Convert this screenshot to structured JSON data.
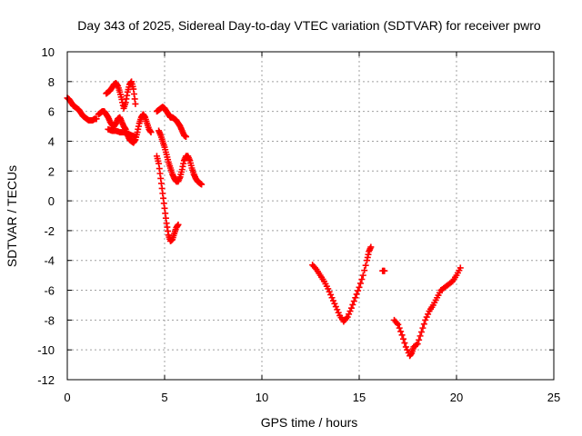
{
  "chart_data": {
    "type": "scatter",
    "title": "Day 343 of 2025, Sidereal Day-to-day VTEC variation (SDTVAR) for receiver pwro",
    "xlabel": "GPS time / hours",
    "ylabel": "SDTVAR / TECUs",
    "xlim": [
      0,
      25
    ],
    "ylim": [
      -12,
      10
    ],
    "x_ticks": [
      0,
      5,
      10,
      15,
      20,
      25
    ],
    "y_ticks": [
      -12,
      -10,
      -8,
      -6,
      -4,
      -2,
      0,
      2,
      4,
      6,
      8,
      10
    ],
    "grid": true,
    "marker_color": "#ff0000",
    "marker": "plus",
    "series_segments": [
      [
        [
          0.0,
          6.9
        ],
        [
          0.1,
          6.8
        ],
        [
          0.2,
          6.6
        ],
        [
          0.3,
          6.4
        ],
        [
          0.4,
          6.3
        ],
        [
          0.5,
          6.2
        ],
        [
          0.6,
          6.1
        ],
        [
          0.7,
          5.9
        ],
        [
          0.8,
          5.7
        ],
        [
          0.9,
          5.6
        ],
        [
          1.0,
          5.5
        ],
        [
          1.1,
          5.4
        ],
        [
          1.2,
          5.4
        ],
        [
          1.3,
          5.4
        ],
        [
          1.4,
          5.5
        ],
        [
          1.5,
          5.5
        ]
      ],
      [
        [
          1.6,
          5.8
        ],
        [
          1.7,
          5.9
        ],
        [
          1.8,
          6.0
        ],
        [
          1.9,
          6.0
        ],
        [
          2.0,
          5.8
        ],
        [
          2.1,
          5.6
        ],
        [
          2.2,
          5.3
        ],
        [
          2.3,
          5.1
        ],
        [
          2.4,
          5.0
        ],
        [
          2.5,
          5.2
        ],
        [
          2.6,
          5.5
        ],
        [
          2.7,
          5.6
        ],
        [
          2.8,
          5.3
        ],
        [
          2.9,
          5.0
        ],
        [
          3.0,
          4.8
        ],
        [
          3.1,
          4.4
        ],
        [
          3.2,
          4.1
        ],
        [
          3.3,
          4.0
        ],
        [
          3.4,
          3.9
        ],
        [
          3.5,
          4.1
        ],
        [
          3.6,
          4.6
        ],
        [
          3.7,
          5.2
        ],
        [
          3.8,
          5.6
        ],
        [
          3.9,
          5.8
        ],
        [
          4.0,
          5.6
        ],
        [
          4.1,
          5.2
        ],
        [
          4.2,
          4.8
        ],
        [
          4.3,
          4.6
        ]
      ],
      [
        [
          2.0,
          7.2
        ],
        [
          2.1,
          7.3
        ],
        [
          2.2,
          7.4
        ],
        [
          2.3,
          7.6
        ],
        [
          2.4,
          7.8
        ],
        [
          2.5,
          7.9
        ],
        [
          2.6,
          7.7
        ],
        [
          2.7,
          7.3
        ],
        [
          2.8,
          6.8
        ],
        [
          2.9,
          6.2
        ],
        [
          3.0,
          6.6
        ],
        [
          3.1,
          7.3
        ],
        [
          3.2,
          7.8
        ],
        [
          3.3,
          8.0
        ],
        [
          3.4,
          7.5
        ],
        [
          3.5,
          6.5
        ]
      ],
      [
        [
          2.1,
          4.8
        ],
        [
          2.3,
          4.7
        ],
        [
          2.5,
          4.7
        ],
        [
          2.7,
          4.6
        ],
        [
          2.9,
          4.6
        ],
        [
          3.1,
          4.5
        ],
        [
          3.3,
          4.4
        ],
        [
          3.5,
          4.3
        ]
      ],
      [
        [
          4.6,
          6.0
        ],
        [
          4.7,
          6.1
        ],
        [
          4.8,
          6.2
        ],
        [
          4.9,
          6.3
        ],
        [
          5.0,
          6.2
        ],
        [
          5.1,
          6.0
        ],
        [
          5.2,
          5.8
        ],
        [
          5.3,
          5.6
        ],
        [
          5.4,
          5.6
        ],
        [
          5.5,
          5.5
        ],
        [
          5.6,
          5.4
        ],
        [
          5.7,
          5.2
        ],
        [
          5.8,
          5.0
        ],
        [
          5.9,
          4.7
        ],
        [
          6.0,
          4.4
        ],
        [
          6.1,
          4.3
        ]
      ],
      [
        [
          4.7,
          4.7
        ],
        [
          4.8,
          4.4
        ],
        [
          4.9,
          4.0
        ],
        [
          5.0,
          3.6
        ],
        [
          5.1,
          3.1
        ],
        [
          5.2,
          2.6
        ],
        [
          5.3,
          2.2
        ],
        [
          5.4,
          1.8
        ],
        [
          5.5,
          1.5
        ],
        [
          5.6,
          1.3
        ],
        [
          5.7,
          1.3
        ],
        [
          5.8,
          1.6
        ],
        [
          5.9,
          2.1
        ],
        [
          6.0,
          2.7
        ],
        [
          6.1,
          3.0
        ],
        [
          6.2,
          3.0
        ],
        [
          6.3,
          2.7
        ],
        [
          6.4,
          2.2
        ],
        [
          6.5,
          1.8
        ],
        [
          6.6,
          1.5
        ],
        [
          6.7,
          1.3
        ],
        [
          6.8,
          1.2
        ],
        [
          6.9,
          1.1
        ]
      ],
      [
        [
          4.6,
          3.0
        ],
        [
          4.7,
          2.5
        ],
        [
          4.8,
          1.5
        ],
        [
          4.9,
          0.5
        ],
        [
          5.0,
          -0.5
        ],
        [
          5.1,
          -1.5
        ],
        [
          5.2,
          -2.3
        ],
        [
          5.3,
          -2.7
        ],
        [
          5.4,
          -2.6
        ],
        [
          5.5,
          -2.2
        ],
        [
          5.6,
          -1.8
        ],
        [
          5.7,
          -1.6
        ]
      ],
      [
        [
          12.6,
          -4.3
        ],
        [
          12.8,
          -4.6
        ],
        [
          13.0,
          -5.0
        ],
        [
          13.2,
          -5.4
        ],
        [
          13.4,
          -5.9
        ],
        [
          13.6,
          -6.5
        ],
        [
          13.8,
          -7.1
        ],
        [
          14.0,
          -7.7
        ],
        [
          14.2,
          -8.1
        ],
        [
          14.4,
          -7.8
        ],
        [
          14.6,
          -7.2
        ],
        [
          14.8,
          -6.5
        ],
        [
          15.0,
          -5.8
        ],
        [
          15.2,
          -5.0
        ],
        [
          15.4,
          -4.0
        ],
        [
          15.5,
          -3.4
        ],
        [
          15.6,
          -3.1
        ]
      ],
      [
        [
          16.2,
          -4.7
        ],
        [
          16.3,
          -4.7
        ]
      ],
      [
        [
          16.8,
          -8.0
        ],
        [
          17.0,
          -8.3
        ],
        [
          17.2,
          -9.0
        ],
        [
          17.4,
          -9.8
        ],
        [
          17.6,
          -10.4
        ],
        [
          17.7,
          -10.2
        ],
        [
          17.8,
          -9.8
        ],
        [
          18.0,
          -9.6
        ],
        [
          18.2,
          -8.8
        ],
        [
          18.4,
          -8.0
        ],
        [
          18.6,
          -7.4
        ],
        [
          18.8,
          -7.0
        ],
        [
          19.0,
          -6.5
        ],
        [
          19.2,
          -6.0
        ],
        [
          19.4,
          -5.8
        ],
        [
          19.6,
          -5.6
        ],
        [
          19.8,
          -5.4
        ],
        [
          20.0,
          -5.0
        ],
        [
          20.2,
          -4.5
        ]
      ]
    ]
  }
}
